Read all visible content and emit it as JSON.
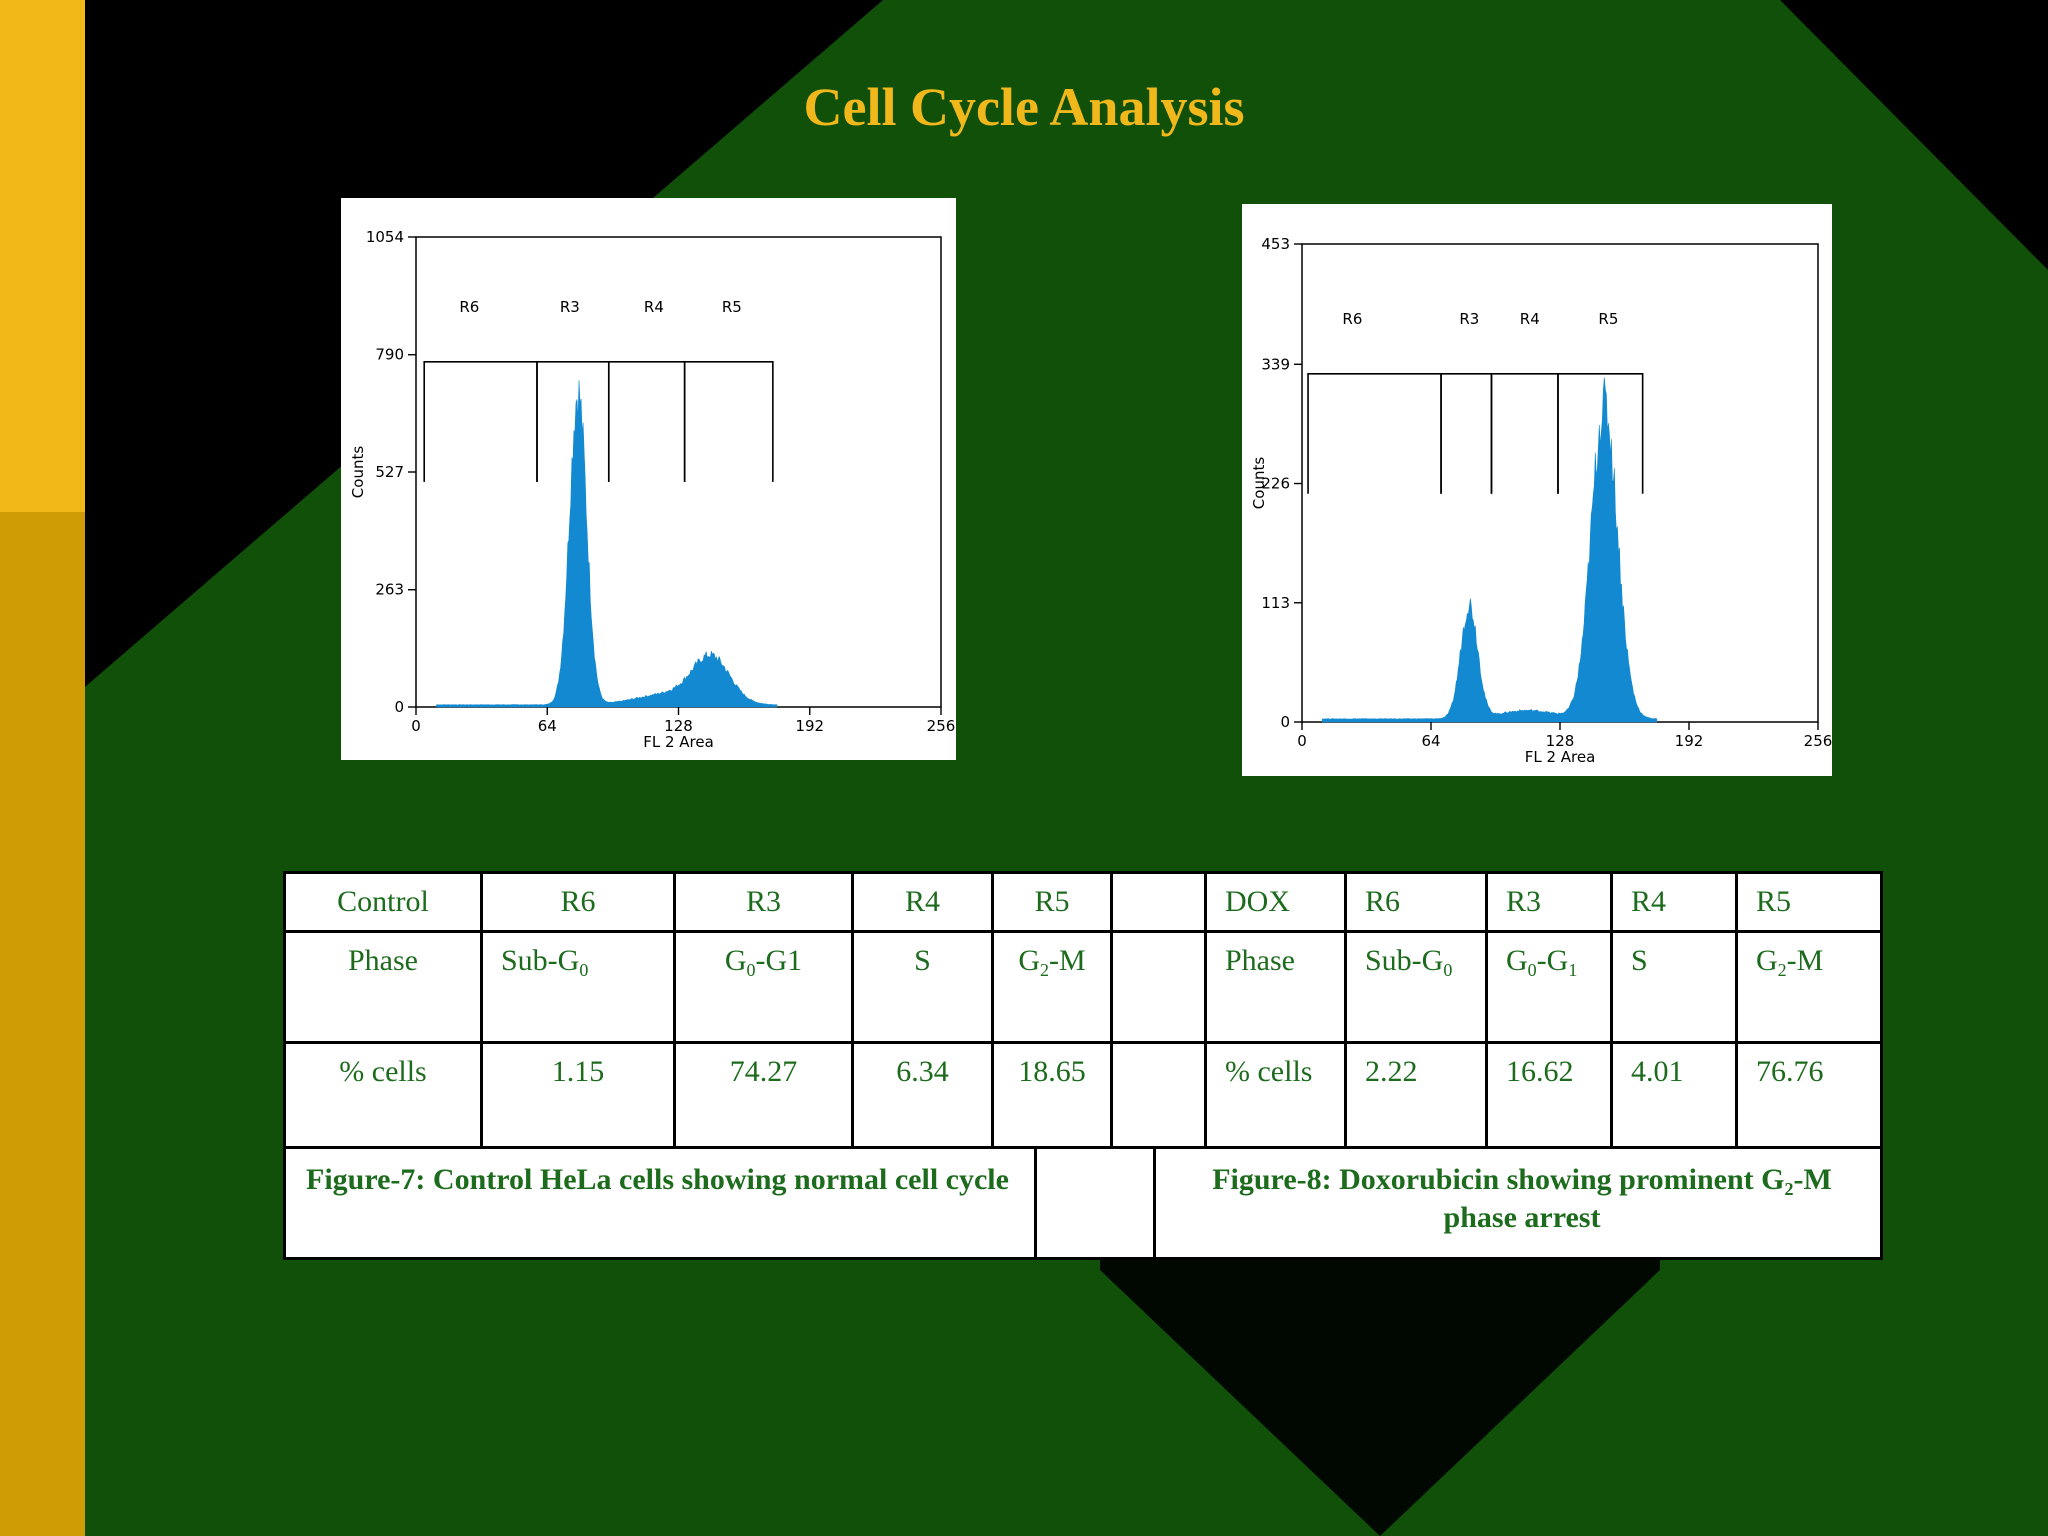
{
  "slide": {
    "title": "Cell Cycle Analysis",
    "colors": {
      "title": "#f0b81a",
      "sidebar_top": "#f2b817",
      "sidebar_bottom": "#cf9c05",
      "background_green": "#115008",
      "table_text": "#1d6b1d",
      "histogram_fill": "#1289d0"
    }
  },
  "chart_data": [
    {
      "type": "area",
      "title": "",
      "xlabel": "FL 2 Area",
      "ylabel": "Counts",
      "xlim": [
        0,
        256
      ],
      "ylim": [
        0,
        1054
      ],
      "x_ticks": [
        0,
        64,
        128,
        192,
        256
      ],
      "y_ticks": [
        0,
        263,
        527,
        790,
        1054
      ],
      "x_tick_labels": [
        "0",
        "64",
        "128",
        "192",
        "256"
      ],
      "y_tick_labels": [
        "0",
        "263",
        "527",
        "790",
        "1054"
      ],
      "gate_level": 774,
      "regions": [
        {
          "name": "R6",
          "start": 4,
          "end": 59,
          "label_x": 26
        },
        {
          "name": "R3",
          "start": 59,
          "end": 94,
          "label_x": 75
        },
        {
          "name": "R4",
          "start": 94,
          "end": 131,
          "label_x": 116
        },
        {
          "name": "R5",
          "start": 131,
          "end": 174,
          "label_x": 154
        }
      ],
      "peaks": [
        {
          "center": 79,
          "height": 700,
          "sigma": 4.2
        },
        {
          "center": 144,
          "height": 100,
          "sigma": 9
        },
        {
          "center": 124,
          "height": 25,
          "sigma": 16
        }
      ],
      "baseline": 5,
      "x_range": [
        10,
        176
      ]
    },
    {
      "type": "area",
      "title": "",
      "xlabel": "FL 2 Area",
      "ylabel": "Counts",
      "xlim": [
        0,
        256
      ],
      "ylim": [
        0,
        453
      ],
      "x_ticks": [
        0,
        64,
        128,
        192,
        256
      ],
      "y_ticks": [
        0,
        113,
        226,
        339,
        453
      ],
      "x_tick_labels": [
        "0",
        "64",
        "128",
        "192",
        "256"
      ],
      "y_tick_labels": [
        "0",
        "113",
        "226",
        "339",
        "453"
      ],
      "gate_level": 330,
      "regions": [
        {
          "name": "R6",
          "start": 3,
          "end": 69,
          "label_x": 25
        },
        {
          "name": "R3",
          "start": 69,
          "end": 94,
          "label_x": 83
        },
        {
          "name": "R4",
          "start": 94,
          "end": 127,
          "label_x": 113
        },
        {
          "name": "R5",
          "start": 127,
          "end": 169,
          "label_x": 152
        }
      ],
      "peaks": [
        {
          "center": 83,
          "height": 108,
          "sigma": 4.2
        },
        {
          "center": 150,
          "height": 297,
          "sigma": 6.5
        },
        {
          "center": 112,
          "height": 8,
          "sigma": 14
        }
      ],
      "baseline": 3,
      "x_range": [
        10,
        176
      ]
    }
  ],
  "table": {
    "header": [
      "Control",
      "R6",
      "R3",
      "R4",
      "R5",
      "",
      "DOX",
      "R6",
      "R3",
      "R4",
      "R5"
    ],
    "phase_label": "Phase",
    "phase": {
      "c_r6_base": "Sub-G",
      "c_r6_sub": "0",
      "c_r3_base": "G",
      "c_r3_sub": "0",
      "c_r3_rest": "-G1",
      "c_r4": "S",
      "c_r5_base": "G",
      "c_r5_sub": "2",
      "c_r5_rest": "-M",
      "d_label": "Phase",
      "d_r6_base": "Sub-G",
      "d_r6_sub": "0",
      "d_r3_base": "G",
      "d_r3_sub": "0",
      "d_r3_mid": "-G",
      "d_r3_sub2": "1",
      "d_r4": "S",
      "d_r5_base": "G",
      "d_r5_sub": "2",
      "d_r5_rest": "-M"
    },
    "cells": {
      "label": "% cells",
      "control": [
        "1.15",
        "74.27",
        "6.34",
        "18.65"
      ],
      "dox_label": "% cells",
      "dox": [
        "2.22",
        "16.62",
        "4.01",
        "76.76"
      ]
    }
  },
  "captions": {
    "fig7": "Figure-7: Control HeLa cells  showing normal cell cycle",
    "fig8_pre": "Figure-8: Doxorubicin showing prominent G",
    "fig8_sub": "2",
    "fig8_post": "-M phase arrest"
  }
}
